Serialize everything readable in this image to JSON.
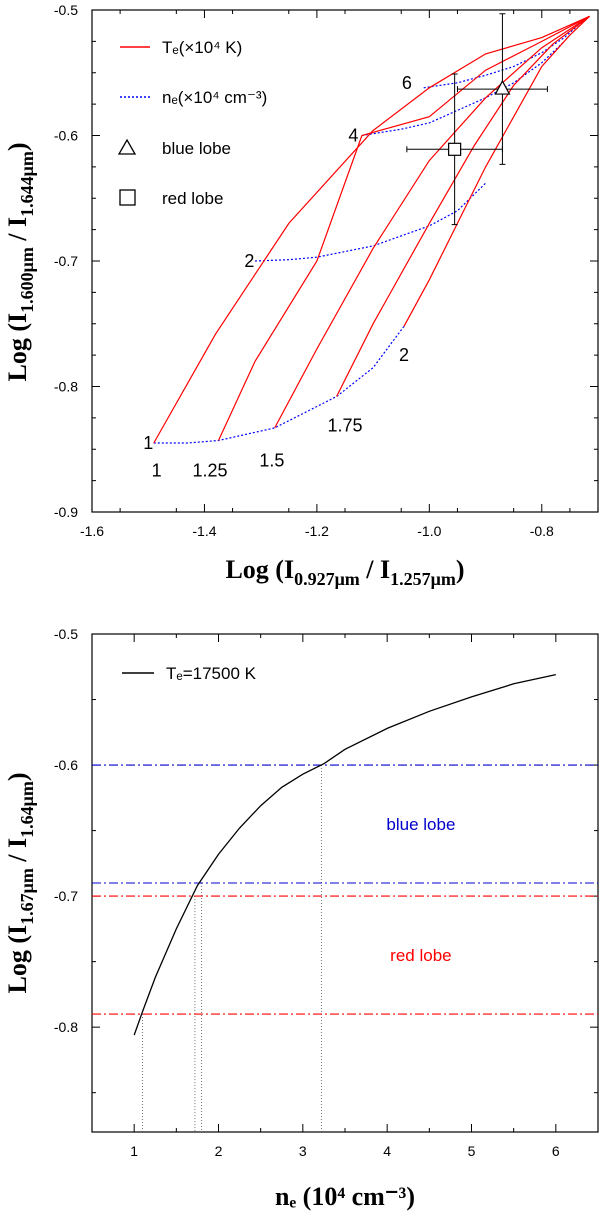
{
  "chart_data": [
    {
      "type": "line",
      "xlim": [
        -1.6,
        -0.7
      ],
      "ylim": [
        -0.9,
        -0.5
      ],
      "x_ticks": [
        "-1.6",
        "-1.4",
        "-1.2",
        "-1.0",
        "-0.8"
      ],
      "x_tick_values": [
        -1.6,
        -1.4,
        -1.2,
        -1.0,
        -0.8
      ],
      "y_ticks": [
        "-0.5",
        "-0.6",
        "-0.7",
        "-0.8",
        "-0.9"
      ],
      "y_tick_values": [
        -0.5,
        -0.6,
        -0.7,
        -0.8,
        -0.9
      ],
      "xlabel": {
        "base": "Log (I",
        "sub1": "0.927μm",
        "mid": " / I",
        "sub2": "1.257μm",
        "end": ")"
      },
      "ylabel": {
        "base": "Log (I",
        "sub1": "1.600μm",
        "mid": " / I",
        "sub2": "1.644μm",
        "end": ")"
      },
      "legend": {
        "te_label": "Tₑ(×10⁴ K)",
        "ne_label": "nₑ(×10⁴ cm⁻³)",
        "blue_label": "blue lobe",
        "red_label": "red lobe"
      },
      "colors": {
        "te": "#ff0000",
        "ne": "#0000ff",
        "marker": "#000000"
      },
      "te_series": [
        {
          "label": "1",
          "points": [
            [
              -1.49,
              -0.845
            ],
            [
              -1.38,
              -0.758
            ],
            [
              -1.25,
              -0.67
            ],
            [
              -1.1,
              -0.596
            ],
            [
              -1.0,
              -0.562
            ],
            [
              -0.9,
              -0.535
            ],
            [
              -0.8,
              -0.522
            ],
            [
              -0.715,
              -0.505
            ]
          ]
        },
        {
          "label": "1.25",
          "points": [
            [
              -1.375,
              -0.843
            ],
            [
              -1.31,
              -0.78
            ],
            [
              -1.2,
              -0.7
            ],
            [
              -1.12,
              -0.6
            ],
            [
              -1.0,
              -0.585
            ],
            [
              -0.9,
              -0.548
            ],
            [
              -0.8,
              -0.525
            ],
            [
              -0.715,
              -0.505
            ]
          ]
        },
        {
          "label": "1.5",
          "points": [
            [
              -1.275,
              -0.833
            ],
            [
              -1.2,
              -0.77
            ],
            [
              -1.1,
              -0.69
            ],
            [
              -1.0,
              -0.62
            ],
            [
              -0.9,
              -0.57
            ],
            [
              -0.8,
              -0.53
            ],
            [
              -0.715,
              -0.505
            ]
          ]
        },
        {
          "label": "1.75",
          "points": [
            [
              -1.165,
              -0.808
            ],
            [
              -1.1,
              -0.75
            ],
            [
              -1.0,
              -0.67
            ],
            [
              -0.92,
              -0.608
            ],
            [
              -0.85,
              -0.56
            ],
            [
              -0.78,
              -0.527
            ],
            [
              -0.715,
              -0.505
            ]
          ]
        },
        {
          "label": "2",
          "points": [
            [
              -1.045,
              -0.752
            ],
            [
              -1.0,
              -0.715
            ],
            [
              -0.95,
              -0.67
            ],
            [
              -0.9,
              -0.625
            ],
            [
              -0.85,
              -0.585
            ],
            [
              -0.8,
              -0.545
            ],
            [
              -0.75,
              -0.52
            ],
            [
              -0.715,
              -0.505
            ]
          ]
        }
      ],
      "ne_series": [
        {
          "label": "1",
          "points": [
            [
              -1.49,
              -0.845
            ],
            [
              -1.43,
              -0.845
            ],
            [
              -1.375,
              -0.843
            ],
            [
              -1.275,
              -0.833
            ],
            [
              -1.165,
              -0.808
            ],
            [
              -1.1,
              -0.785
            ],
            [
              -1.045,
              -0.752
            ]
          ]
        },
        {
          "label": "2",
          "points": [
            [
              -1.31,
              -0.7
            ],
            [
              -1.25,
              -0.699
            ],
            [
              -1.2,
              -0.697
            ],
            [
              -1.1,
              -0.688
            ],
            [
              -1.0,
              -0.672
            ],
            [
              -0.95,
              -0.66
            ],
            [
              -0.9,
              -0.638
            ]
          ]
        },
        {
          "label": "4",
          "points": [
            [
              -1.12,
              -0.6
            ],
            [
              -1.05,
              -0.595
            ],
            [
              -1.0,
              -0.59
            ],
            [
              -0.95,
              -0.58
            ],
            [
              -0.9,
              -0.57
            ],
            [
              -0.85,
              -0.558
            ],
            [
              -0.8,
              -0.542
            ],
            [
              -0.76,
              -0.525
            ]
          ]
        },
        {
          "label": "6",
          "points": [
            [
              -1.01,
              -0.562
            ],
            [
              -0.95,
              -0.558
            ],
            [
              -0.9,
              -0.552
            ],
            [
              -0.85,
              -0.545
            ],
            [
              -0.8,
              -0.534
            ],
            [
              -0.76,
              -0.522
            ],
            [
              -0.72,
              -0.506
            ]
          ]
        }
      ],
      "markers": [
        {
          "name": "blue lobe",
          "shape": "triangle",
          "x": -0.87,
          "y": -0.563,
          "xerr": 0.08,
          "yerr": 0.06
        },
        {
          "name": "red lobe",
          "shape": "square",
          "x": -0.955,
          "y": -0.611,
          "xerr": 0.085,
          "yerr": 0.06
        }
      ],
      "annotations": [
        {
          "text": "6",
          "x": -1.04,
          "y": -0.558
        },
        {
          "text": "4",
          "x": -1.135,
          "y": -0.6
        },
        {
          "text": "2",
          "x": -1.32,
          "y": -0.7
        },
        {
          "text": "2",
          "x": -1.045,
          "y": -0.775
        },
        {
          "text": "1",
          "x": -1.5,
          "y": -0.845
        },
        {
          "text": "1",
          "x": -1.485,
          "y": -0.867
        },
        {
          "text": "1.25",
          "x": -1.39,
          "y": -0.867
        },
        {
          "text": "1.5",
          "x": -1.28,
          "y": -0.859
        },
        {
          "text": "1.75",
          "x": -1.15,
          "y": -0.831
        }
      ]
    },
    {
      "type": "line",
      "xlim": [
        0.5,
        6.5
      ],
      "ylim": [
        -0.88,
        -0.5
      ],
      "x_ticks": [
        "1",
        "2",
        "3",
        "4",
        "5",
        "6"
      ],
      "x_tick_values": [
        1,
        2,
        3,
        4,
        5,
        6
      ],
      "y_ticks": [
        "-0.5",
        "-0.6",
        "-0.7",
        "-0.8"
      ],
      "y_tick_values": [
        -0.5,
        -0.6,
        -0.7,
        -0.8
      ],
      "xlabel": {
        "base": "nₑ (10⁴ cm⁻³)"
      },
      "ylabel": {
        "base": "Log (I",
        "sub1": "1.67μm",
        "mid": " / I",
        "sub2": "1.64μm",
        "end": ")"
      },
      "legend": {
        "curve_label": "Tₑ=17500 K"
      },
      "colors": {
        "curve": "#000000",
        "blue": "#0000cc",
        "red": "#ff0000"
      },
      "curve": {
        "x": [
          1.0,
          1.1,
          1.25,
          1.5,
          1.75,
          2.0,
          2.25,
          2.5,
          2.75,
          3.0,
          3.25,
          3.5,
          4.0,
          4.5,
          5.0,
          5.5,
          6.0
        ],
        "y": [
          -0.806,
          -0.788,
          -0.762,
          -0.725,
          -0.692,
          -0.668,
          -0.648,
          -0.631,
          -0.617,
          -0.607,
          -0.599,
          -0.588,
          -0.572,
          -0.559,
          -0.548,
          -0.538,
          -0.531
        ]
      },
      "hlines": [
        {
          "y": -0.6,
          "color": "#0000cc"
        },
        {
          "y": -0.69,
          "color": "#0000cc"
        },
        {
          "y": -0.7,
          "color": "#ff0000"
        },
        {
          "y": -0.79,
          "color": "#ff0000"
        }
      ],
      "vlines": [
        {
          "x": 1.1,
          "ytop": -0.79
        },
        {
          "x": 1.72,
          "ytop": -0.7
        },
        {
          "x": 1.8,
          "ytop": -0.69
        },
        {
          "x": 3.22,
          "ytop": -0.6
        }
      ],
      "region_labels": [
        {
          "text": "blue lobe",
          "x": 4.4,
          "y": -0.645,
          "color": "#0000cc"
        },
        {
          "text": "red lobe",
          "x": 4.4,
          "y": -0.745,
          "color": "#ff0000"
        }
      ]
    }
  ]
}
